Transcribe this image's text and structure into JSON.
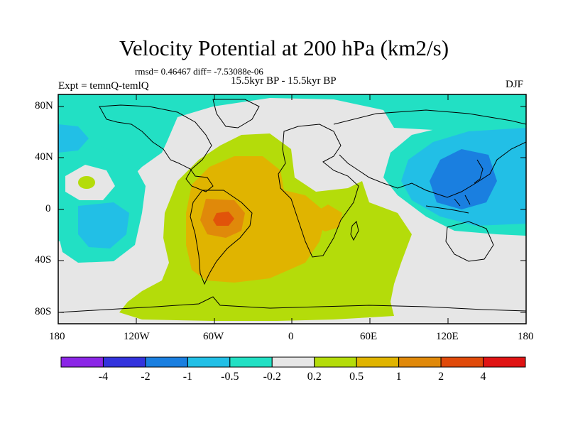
{
  "title": "Velocity Potential at 200 hPa (km2/s)",
  "stats": "rmsd= 0.46467  diff= -7.53088e-06",
  "left_label": "Expt = temnQ-temlQ",
  "center_label": "15.5kyr BP - 15.5kyr BP",
  "season_label": "DJF",
  "lat_labels": [
    "80N",
    "40N",
    "0",
    "40S",
    "80S"
  ],
  "lon_labels": [
    "180",
    "120W",
    "60W",
    "0",
    "60E",
    "120E",
    "180"
  ],
  "colorbar": {
    "levels": [
      "-4",
      "-2",
      "-1",
      "-0.5",
      "-0.2",
      "0.2",
      "0.5",
      "1",
      "2",
      "4"
    ],
    "colors": [
      "#8B26E6",
      "#3333DD",
      "#1A7FE0",
      "#22BFE6",
      "#22E0C4",
      "#E6E6E6",
      "#B4DC0A",
      "#E0B400",
      "#E0890A",
      "#E04A0A",
      "#E01414"
    ]
  }
}
